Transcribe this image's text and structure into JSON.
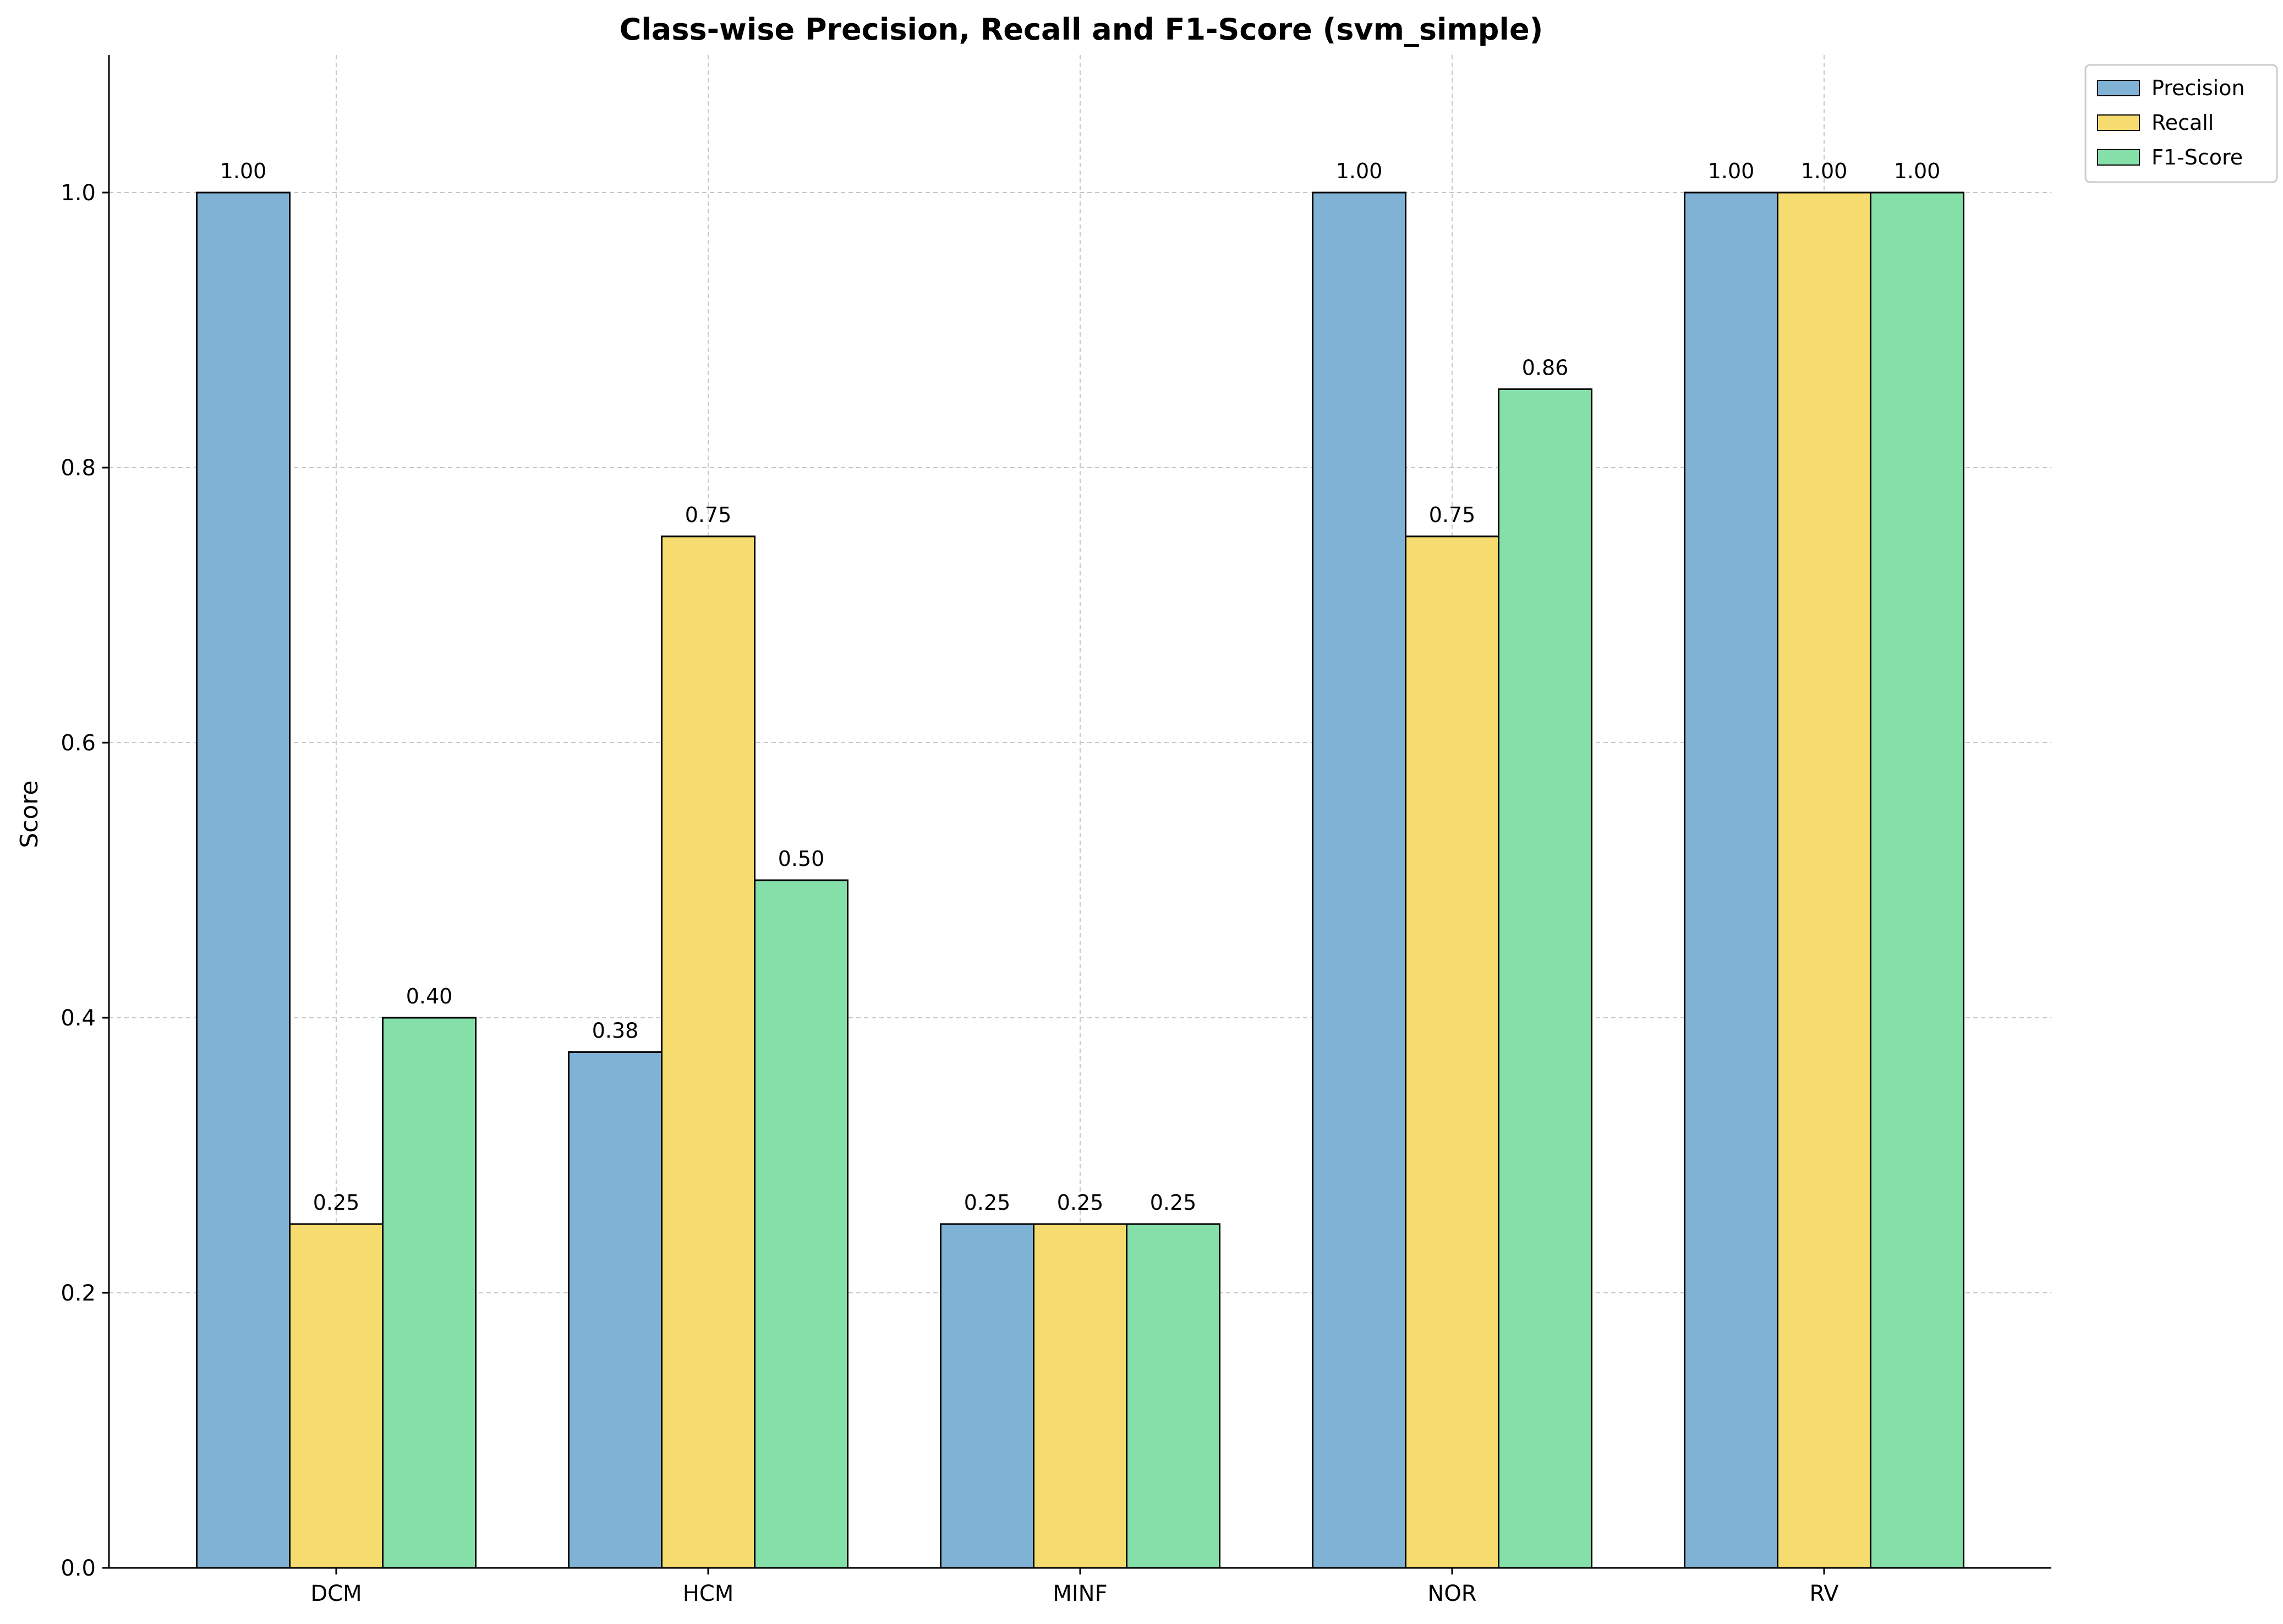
{
  "chart_data": {
    "type": "bar",
    "title": "Class-wise Precision, Recall and F1-Score (svm_simple)",
    "xlabel": "",
    "ylabel": "Score",
    "categories": [
      "DCM",
      "HCM",
      "MINF",
      "NOR",
      "RV"
    ],
    "series": [
      {
        "name": "Precision",
        "color": "#7fb2d5",
        "values": [
          1.0,
          0.375,
          0.25,
          1.0,
          1.0
        ],
        "labels": [
          "1.00",
          "0.38",
          "0.25",
          "1.00",
          "1.00"
        ]
      },
      {
        "name": "Recall",
        "color": "#f6dc6f",
        "values": [
          0.25,
          0.75,
          0.25,
          0.75,
          1.0
        ],
        "labels": [
          "0.25",
          "0.75",
          "0.25",
          "0.75",
          "1.00"
        ]
      },
      {
        "name": "F1-Score",
        "color": "#84dfa8",
        "values": [
          0.4,
          0.5,
          0.25,
          0.857,
          1.0
        ],
        "labels": [
          "0.40",
          "0.50",
          "0.25",
          "0.86",
          "1.00"
        ]
      }
    ],
    "ylim": [
      0,
      1.1
    ],
    "yticks": [
      "0.0",
      "0.2",
      "0.4",
      "0.6",
      "0.8",
      "1.0"
    ],
    "ytick_values": [
      0,
      0.2,
      0.4,
      0.6,
      0.8,
      1.0
    ],
    "grid": true,
    "legend_position": "outside top-right"
  }
}
